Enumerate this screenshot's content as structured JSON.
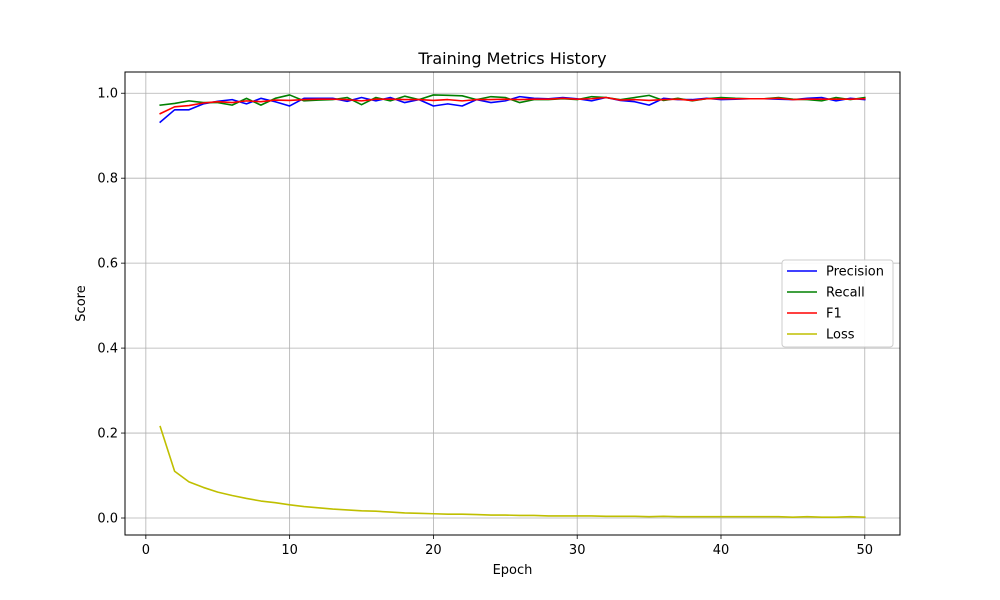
{
  "chart_data": {
    "type": "line",
    "title": "Training Metrics History",
    "xlabel": "Epoch",
    "ylabel": "Score",
    "xlim": [
      -1.45,
      52.45
    ],
    "ylim": [
      -0.04,
      1.05
    ],
    "xticks": [
      0,
      10,
      20,
      30,
      40,
      50
    ],
    "yticks": [
      0.0,
      0.2,
      0.4,
      0.6,
      0.8,
      1.0
    ],
    "xtick_labels": [
      "0",
      "10",
      "20",
      "30",
      "40",
      "50"
    ],
    "ytick_labels": [
      "0.0",
      "0.2",
      "0.4",
      "0.6",
      "0.8",
      "1.0"
    ],
    "grid": true,
    "legend_position": "center-right",
    "x": [
      1,
      2,
      3,
      4,
      5,
      6,
      7,
      8,
      9,
      10,
      11,
      12,
      13,
      14,
      15,
      16,
      17,
      18,
      19,
      20,
      21,
      22,
      23,
      24,
      25,
      26,
      27,
      28,
      29,
      30,
      31,
      32,
      33,
      34,
      35,
      36,
      37,
      38,
      39,
      40,
      41,
      42,
      43,
      44,
      45,
      46,
      47,
      48,
      49,
      50
    ],
    "series": [
      {
        "name": "Precision",
        "color": "#0000ff",
        "values": [
          0.932,
          0.961,
          0.961,
          0.975,
          0.981,
          0.985,
          0.975,
          0.988,
          0.98,
          0.97,
          0.988,
          0.988,
          0.988,
          0.981,
          0.99,
          0.982,
          0.99,
          0.978,
          0.985,
          0.97,
          0.975,
          0.97,
          0.985,
          0.978,
          0.982,
          0.992,
          0.988,
          0.987,
          0.99,
          0.987,
          0.982,
          0.99,
          0.983,
          0.98,
          0.972,
          0.988,
          0.985,
          0.985,
          0.988,
          0.985,
          0.986,
          0.987,
          0.987,
          0.986,
          0.985,
          0.988,
          0.99,
          0.982,
          0.988,
          0.985
        ]
      },
      {
        "name": "Recall",
        "color": "#008000",
        "values": [
          0.972,
          0.976,
          0.982,
          0.978,
          0.978,
          0.972,
          0.988,
          0.972,
          0.988,
          0.996,
          0.982,
          0.984,
          0.985,
          0.99,
          0.973,
          0.99,
          0.982,
          0.993,
          0.985,
          0.996,
          0.995,
          0.994,
          0.985,
          0.992,
          0.99,
          0.978,
          0.985,
          0.985,
          0.987,
          0.985,
          0.992,
          0.99,
          0.985,
          0.99,
          0.995,
          0.983,
          0.988,
          0.982,
          0.987,
          0.99,
          0.988,
          0.987,
          0.987,
          0.99,
          0.986,
          0.985,
          0.982,
          0.99,
          0.985,
          0.99
        ]
      },
      {
        "name": "F1",
        "color": "#ff0000",
        "values": [
          0.952,
          0.968,
          0.971,
          0.977,
          0.98,
          0.978,
          0.982,
          0.98,
          0.984,
          0.983,
          0.985,
          0.986,
          0.986,
          0.985,
          0.982,
          0.986,
          0.986,
          0.985,
          0.985,
          0.983,
          0.985,
          0.982,
          0.985,
          0.985,
          0.986,
          0.985,
          0.986,
          0.986,
          0.988,
          0.986,
          0.987,
          0.99,
          0.984,
          0.985,
          0.983,
          0.985,
          0.986,
          0.983,
          0.987,
          0.987,
          0.987,
          0.987,
          0.987,
          0.988,
          0.985,
          0.986,
          0.986,
          0.986,
          0.986,
          0.987
        ]
      },
      {
        "name": "Loss",
        "color": "#bfbf00",
        "values": [
          0.215,
          0.11,
          0.085,
          0.072,
          0.061,
          0.053,
          0.046,
          0.04,
          0.036,
          0.031,
          0.027,
          0.024,
          0.021,
          0.019,
          0.017,
          0.016,
          0.014,
          0.012,
          0.011,
          0.01,
          0.009,
          0.009,
          0.008,
          0.007,
          0.007,
          0.006,
          0.006,
          0.005,
          0.005,
          0.005,
          0.005,
          0.004,
          0.004,
          0.004,
          0.003,
          0.004,
          0.003,
          0.003,
          0.003,
          0.003,
          0.003,
          0.003,
          0.003,
          0.003,
          0.002,
          0.003,
          0.002,
          0.002,
          0.003,
          0.002
        ]
      }
    ]
  }
}
